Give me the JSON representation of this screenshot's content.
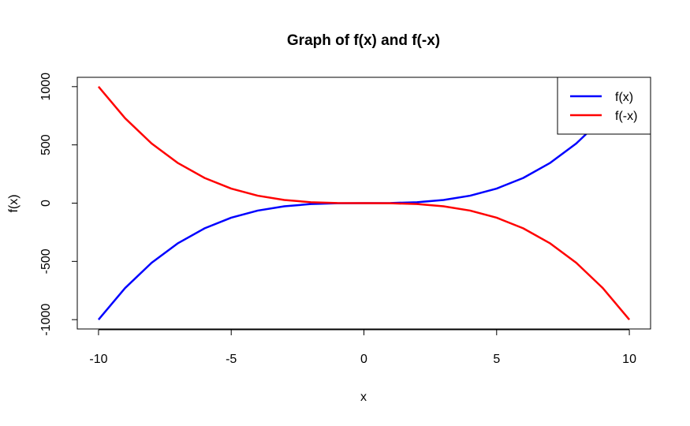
{
  "chart_data": {
    "type": "line",
    "title": "Graph of f(x) and f(-x)",
    "xlabel": "x",
    "ylabel": "f(x)",
    "xlim": [
      -10.8,
      10.8
    ],
    "ylim": [
      -1080,
      1080
    ],
    "x_ticks": [
      -10,
      -5,
      0,
      5,
      10
    ],
    "y_ticks": [
      -1000,
      -500,
      0,
      500,
      1000
    ],
    "x_tick_labels": [
      "-10",
      "-5",
      "0",
      "5",
      "10"
    ],
    "y_tick_labels": [
      "-1000",
      "-500",
      "0",
      "500",
      "1000"
    ],
    "grid": false,
    "legend_position": "top-right",
    "series": [
      {
        "name": "f(x)",
        "color": "#0000ff",
        "x": [
          -10,
          -9,
          -8,
          -7,
          -6,
          -5,
          -4,
          -3,
          -2,
          -1,
          0,
          1,
          2,
          3,
          4,
          5,
          6,
          7,
          8,
          9,
          10
        ],
        "y": [
          -1000,
          -729,
          -512,
          -343,
          -216,
          -125,
          -64,
          -27,
          -8,
          -1,
          0,
          1,
          8,
          27,
          64,
          125,
          216,
          343,
          512,
          729,
          1000
        ]
      },
      {
        "name": "f(-x)",
        "color": "#ff0000",
        "x": [
          -10,
          -9,
          -8,
          -7,
          -6,
          -5,
          -4,
          -3,
          -2,
          -1,
          0,
          1,
          2,
          3,
          4,
          5,
          6,
          7,
          8,
          9,
          10
        ],
        "y": [
          1000,
          729,
          512,
          343,
          216,
          125,
          64,
          27,
          8,
          1,
          0,
          -1,
          -8,
          -27,
          -64,
          -125,
          -216,
          -343,
          -512,
          -729,
          -1000
        ]
      }
    ]
  }
}
